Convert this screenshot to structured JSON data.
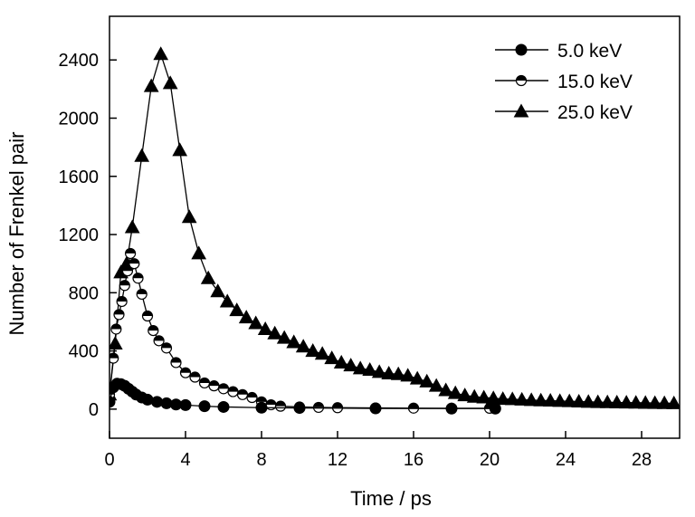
{
  "chart_data": {
    "type": "scatter",
    "xlabel": "Time / ps",
    "ylabel": "Number of Frenkel pair",
    "xlim": [
      0,
      30
    ],
    "ylim": [
      -200,
      2700
    ],
    "xticks": [
      0,
      4,
      8,
      12,
      16,
      20,
      24,
      28
    ],
    "yticks": [
      0,
      400,
      800,
      1200,
      1600,
      2000,
      2400
    ],
    "legend_position": "top-right",
    "series": [
      {
        "name": "5.0 keV",
        "marker": "filled-circle",
        "x": [
          0.0,
          0.2,
          0.4,
          0.6,
          0.8,
          1.0,
          1.2,
          1.4,
          1.7,
          2.0,
          2.5,
          3.0,
          3.5,
          4.0,
          5.0,
          6.0,
          8.0,
          10.0,
          14.0,
          18.0,
          20.3
        ],
        "y": [
          50,
          150,
          175,
          172,
          160,
          140,
          120,
          100,
          80,
          65,
          50,
          40,
          32,
          28,
          20,
          15,
          10,
          8,
          5,
          4,
          4
        ]
      },
      {
        "name": "15.0 keV",
        "marker": "half-filled-circle",
        "x": [
          0.0,
          0.2,
          0.35,
          0.5,
          0.65,
          0.8,
          0.95,
          1.1,
          1.3,
          1.5,
          1.7,
          2.0,
          2.3,
          2.6,
          3.0,
          3.5,
          4.0,
          4.5,
          5.0,
          5.5,
          6.0,
          6.5,
          7.0,
          7.5,
          8.0,
          8.5,
          9.0,
          10.0,
          11.0,
          12.0,
          14.0,
          16.0,
          18.0,
          20.0,
          20.3
        ],
        "y": [
          100,
          350,
          550,
          650,
          740,
          850,
          950,
          1070,
          1000,
          900,
          790,
          640,
          540,
          470,
          420,
          320,
          250,
          220,
          180,
          160,
          140,
          120,
          100,
          80,
          50,
          30,
          20,
          15,
          12,
          10,
          8,
          7,
          6,
          6,
          5
        ]
      },
      {
        "name": "25.0 keV",
        "marker": "filled-triangle",
        "x": [
          0.0,
          0.3,
          0.6,
          0.9,
          1.2,
          1.7,
          2.2,
          2.7,
          3.2,
          3.7,
          4.2,
          4.7,
          5.2,
          5.7,
          6.2,
          6.7,
          7.2,
          7.7,
          8.2,
          8.7,
          9.2,
          9.7,
          10.2,
          10.7,
          11.2,
          11.7,
          12.2,
          12.7,
          13.2,
          13.7,
          14.2,
          14.7,
          15.2,
          15.7,
          16.2,
          16.7,
          17.2,
          17.7,
          18.2,
          18.7,
          19.2,
          19.7,
          20.2,
          20.7,
          21.2,
          21.7,
          22.2,
          22.7,
          23.2,
          23.7,
          24.2,
          24.7,
          25.2,
          25.7,
          26.2,
          26.7,
          27.2,
          27.7,
          28.2,
          28.7,
          29.2,
          29.7
        ],
        "y": [
          100,
          450,
          940,
          1000,
          1250,
          1740,
          2220,
          2440,
          2240,
          1780,
          1320,
          1070,
          900,
          810,
          740,
          680,
          630,
          590,
          550,
          520,
          490,
          460,
          430,
          400,
          380,
          350,
          320,
          300,
          280,
          270,
          255,
          245,
          240,
          230,
          210,
          190,
          160,
          130,
          110,
          95,
          85,
          80,
          75,
          70,
          68,
          65,
          62,
          60,
          58,
          56,
          54,
          52,
          50,
          48,
          47,
          46,
          45,
          44,
          43,
          42,
          41,
          40
        ]
      }
    ]
  }
}
